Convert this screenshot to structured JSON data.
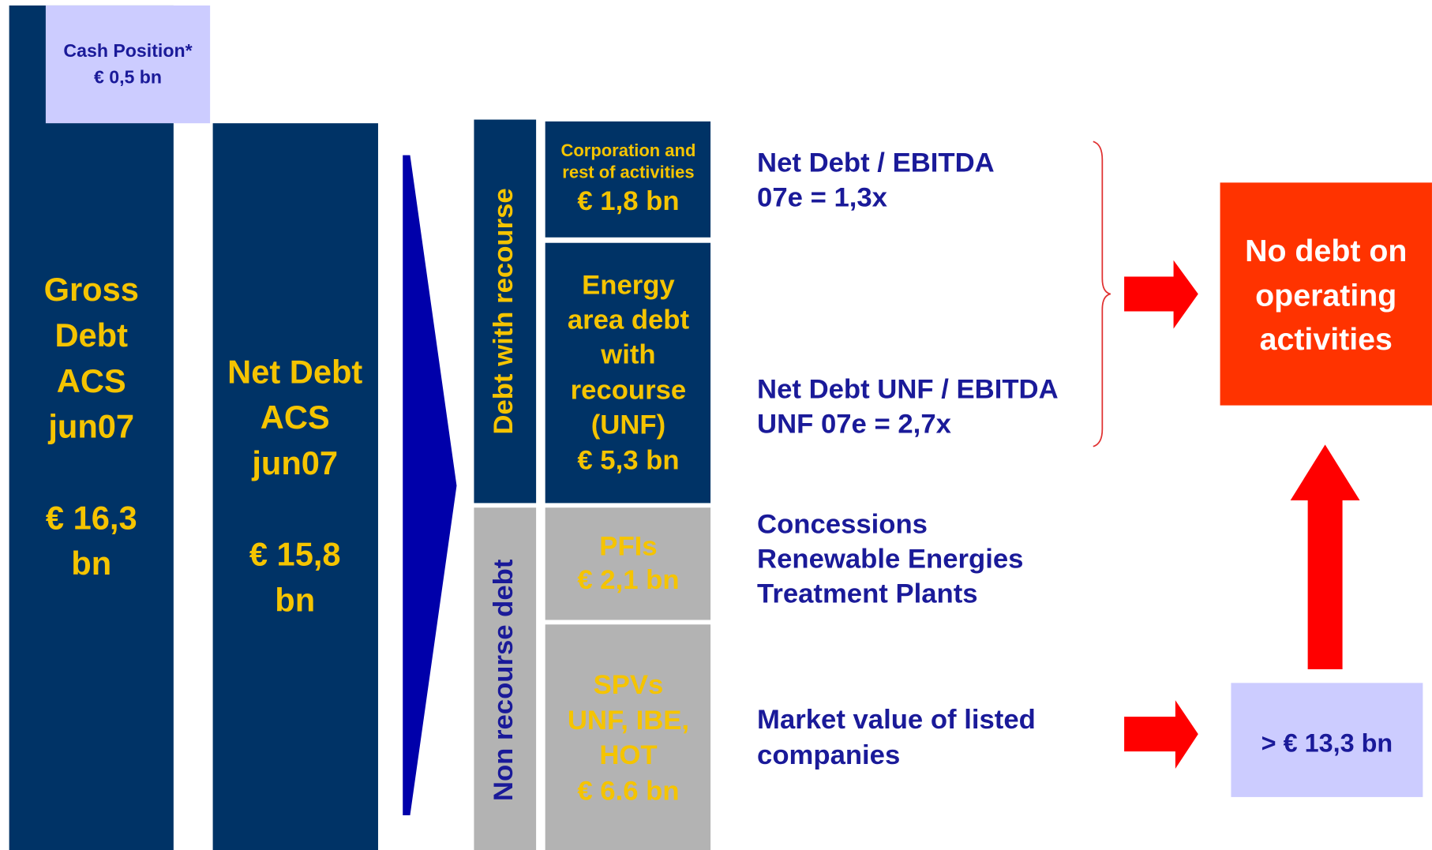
{
  "gross_debt": {
    "label": [
      "Gross",
      "Debt",
      "ACS",
      "jun07"
    ],
    "amount": [
      "€ 16,3",
      "bn"
    ]
  },
  "cash_position": [
    "Cash Position*",
    "€ 0,5 bn"
  ],
  "net_debt": {
    "label": [
      "Net Debt",
      "ACS",
      "jun07"
    ],
    "amount": [
      "€ 15,8",
      "bn"
    ]
  },
  "groups": {
    "recourse": "Debt with recourse",
    "non_recourse": "Non recourse debt"
  },
  "boxes": {
    "corporation": {
      "label": [
        "Corporation and",
        "rest of activities"
      ],
      "amount": "€ 1,8 bn"
    },
    "energy": [
      "Energy",
      "area debt",
      "with",
      "recourse",
      "(UNF)",
      "€ 5,3 bn"
    ],
    "pfis": [
      "PFIs",
      "€ 2,1 bn"
    ],
    "spvs": [
      "SPVs",
      "UNF, IBE,",
      "HOT",
      "€ 6.6 bn"
    ]
  },
  "notes": {
    "ratio": [
      "Net Debt / EBITDA",
      "07e = 1,3x"
    ],
    "unf_ratio": [
      "Net Debt UNF / EBITDA",
      "UNF 07e = 2,7x"
    ],
    "assets": [
      "Concessions",
      "Renewable Energies",
      "Treatment Plants"
    ],
    "market": [
      "Market value of listed",
      "companies"
    ]
  },
  "conclusion": [
    "No debt on",
    "operating",
    "activities"
  ],
  "market_value": "> € 13,3 bn"
}
